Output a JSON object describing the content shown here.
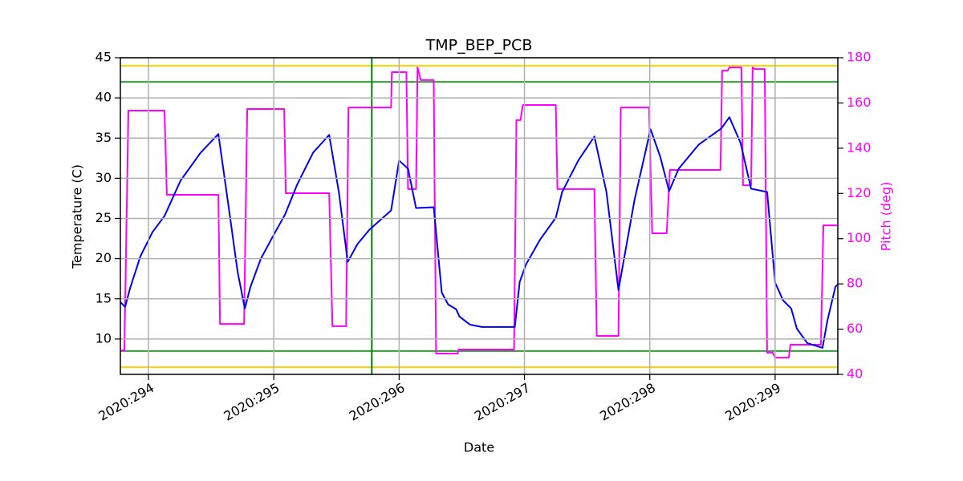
{
  "chart_data": {
    "type": "line",
    "title": "TMP_BEP_PCB",
    "xlabel": "Date",
    "ylabel": "Temperature (C)",
    "y2label": "Pitch (deg)",
    "y2color": "#ff00ff",
    "grid": true,
    "xlim": [
      293.776,
      299.5
    ],
    "xticks": [
      {
        "value": 294,
        "label": "2020:294"
      },
      {
        "value": 295,
        "label": "2020:295"
      },
      {
        "value": 296,
        "label": "2020:296"
      },
      {
        "value": 297,
        "label": "2020:297"
      },
      {
        "value": 298,
        "label": "2020:298"
      },
      {
        "value": 299,
        "label": "2020:299"
      }
    ],
    "ylim": [
      5.6,
      45
    ],
    "yticks": [
      10,
      15,
      20,
      25,
      30,
      35,
      40,
      45
    ],
    "y2lim": [
      40,
      180
    ],
    "y2ticks": [
      40,
      60,
      80,
      100,
      120,
      140,
      160,
      180
    ],
    "hlines": [
      {
        "value": 44,
        "color": "#ffd700"
      },
      {
        "value": 6.5,
        "color": "#ffd700"
      },
      {
        "value": 42,
        "color": "#2ca02c"
      },
      {
        "value": 8.5,
        "color": "#2ca02c"
      }
    ],
    "vlines": [
      {
        "value": 295.782,
        "color": "#008000"
      }
    ],
    "series": [
      {
        "color": "#0000ee",
        "axis": "y",
        "x": [
          293.776,
          293.814,
          293.853,
          293.936,
          294.032,
          294.128,
          294.256,
          294.417,
          294.558,
          294.641,
          294.712,
          294.769,
          294.814,
          294.897,
          294.994,
          295.09,
          295.186,
          295.314,
          295.442,
          295.519,
          295.59,
          295.667,
          295.763,
          295.936,
          296.0,
          296.071,
          296.135,
          296.276,
          296.34,
          296.391,
          296.455,
          296.481,
          296.564,
          296.66,
          296.923,
          296.962,
          297.013,
          297.122,
          297.25,
          297.301,
          297.429,
          297.558,
          297.654,
          297.75,
          297.878,
          298.006,
          298.083,
          298.154,
          298.231,
          298.391,
          298.571,
          298.635,
          298.724,
          298.808,
          298.936,
          299.0,
          299.064,
          299.128,
          299.173,
          299.256,
          299.378,
          299.417,
          299.481,
          299.5
        ],
        "values": [
          14.6,
          14.0,
          16.3,
          20.3,
          23.3,
          25.3,
          29.7,
          33.2,
          35.5,
          26.3,
          18.3,
          13.8,
          16.5,
          20.0,
          22.8,
          25.5,
          29.2,
          33.2,
          35.4,
          28.3,
          19.6,
          21.8,
          23.6,
          26.0,
          32.2,
          31.2,
          26.3,
          26.4,
          15.8,
          14.3,
          13.7,
          12.8,
          11.8,
          11.5,
          11.5,
          17.1,
          19.3,
          22.3,
          25.1,
          28.3,
          32.2,
          35.2,
          28.3,
          16.1,
          27.3,
          36.1,
          32.7,
          28.4,
          31.2,
          34.2,
          36.2,
          37.6,
          34.4,
          28.7,
          28.3,
          17.0,
          14.8,
          13.8,
          11.3,
          9.5,
          8.9,
          12.3,
          16.5,
          16.8
        ]
      },
      {
        "color": "#ff00ff",
        "axis": "y2",
        "x": [
          293.776,
          293.808,
          293.84,
          294.128,
          294.147,
          294.558,
          294.571,
          294.763,
          294.788,
          295.083,
          295.096,
          295.442,
          295.468,
          295.577,
          295.596,
          295.936,
          295.942,
          296.058,
          296.071,
          296.135,
          296.147,
          296.173,
          296.276,
          296.295,
          296.468,
          296.474,
          296.917,
          296.936,
          296.968,
          296.987,
          297.25,
          297.263,
          297.558,
          297.577,
          297.75,
          297.769,
          297.994,
          298.019,
          298.135,
          298.16,
          298.564,
          298.577,
          298.622,
          298.635,
          298.731,
          298.744,
          298.808,
          298.821,
          298.84,
          298.917,
          298.936,
          298.981,
          299.0,
          299.109,
          299.122,
          299.365,
          299.385,
          299.5
        ],
        "values": [
          50.6,
          50.6,
          156.6,
          156.6,
          119.4,
          119.4,
          62.3,
          62.3,
          157.3,
          157.3,
          120.1,
          120.1,
          61.3,
          61.3,
          158.0,
          158.0,
          173.6,
          173.6,
          121.9,
          121.9,
          175.7,
          170.1,
          170.1,
          49.2,
          49.2,
          51.0,
          51.0,
          152.4,
          152.4,
          159.1,
          159.1,
          121.9,
          121.9,
          57.0,
          57.0,
          158.0,
          158.0,
          102.4,
          102.4,
          130.4,
          130.4,
          174.3,
          174.3,
          175.7,
          175.7,
          123.6,
          123.6,
          175.7,
          175.0,
          175.0,
          49.6,
          49.6,
          47.4,
          47.4,
          53.1,
          53.1,
          105.9,
          105.9
        ]
      }
    ]
  }
}
